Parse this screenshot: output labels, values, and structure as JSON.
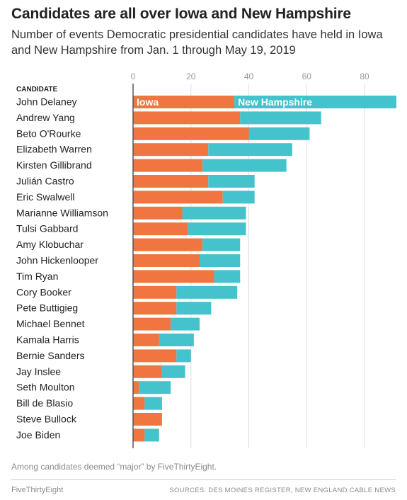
{
  "title": "Candidates are all over Iowa and New Hampshire",
  "subtitle": "Number of events Democratic presidential candidates have held in Iowa and New Hampshire from Jan. 1 through May 19, 2019",
  "footnote": "Among candidates deemed “major” by FiveThirtyEight.",
  "brand": "FiveThirtyEight",
  "sources": "SOURCES: DES MOINES REGISTER, NEW ENGLAND CABLE NEWS",
  "colors": {
    "iowa": "#f07540",
    "new_hampshire": "#45c3cc",
    "axis": "#555555",
    "grid": "#dddddd"
  },
  "chart_data": {
    "type": "bar",
    "orientation": "horizontal",
    "stacked": true,
    "column_header": "CANDIDATE",
    "xlim": [
      0,
      91
    ],
    "xticks": [
      0,
      20,
      40,
      60,
      80
    ],
    "grid": true,
    "categories": [
      "John Delaney",
      "Andrew Yang",
      "Beto O'Rourke",
      "Elizabeth Warren",
      "Kirsten Gillibrand",
      "Julián Castro",
      "Eric Swalwell",
      "Marianne Williamson",
      "Tulsi Gabbard",
      "Amy Klobuchar",
      "John Hickenlooper",
      "Tim Ryan",
      "Cory Booker",
      "Pete Buttigieg",
      "Michael Bennet",
      "Kamala Harris",
      "Bernie Sanders",
      "Jay Inslee",
      "Seth Moulton",
      "Bill de Blasio",
      "Steve Bullock",
      "Joe Biden"
    ],
    "series": [
      {
        "name": "Iowa",
        "values": [
          35,
          37,
          40,
          26,
          24,
          26,
          31,
          17,
          19,
          24,
          23,
          28,
          15,
          15,
          13,
          9,
          15,
          10,
          2,
          4,
          10,
          4
        ]
      },
      {
        "name": "New Hampshire",
        "values": [
          56,
          28,
          21,
          29,
          29,
          16,
          11,
          22,
          20,
          13,
          14,
          9,
          21,
          12,
          10,
          12,
          5,
          8,
          11,
          6,
          0,
          5
        ]
      }
    ]
  }
}
